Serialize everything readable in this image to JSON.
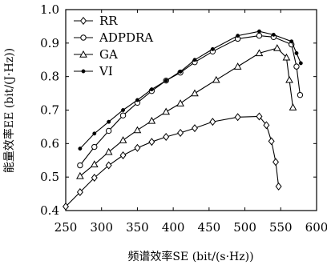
{
  "chart_data": {
    "type": "line",
    "xlabel": "频谱效率SE (bit/(s·Hz))",
    "ylabel": "能量效率EE (bit/(J·Hz))",
    "xlim": [
      250,
      600
    ],
    "ylim": [
      0.4,
      1.0
    ],
    "x_ticks": [
      "250",
      "300",
      "350",
      "400",
      "450",
      "500",
      "550",
      "600"
    ],
    "y_ticks": [
      "0.4",
      "0.5",
      "0.6",
      "0.7",
      "0.8",
      "0.9",
      "1.0"
    ],
    "legend_position": "top-left",
    "series": [
      {
        "name": "RR",
        "marker": "diamond",
        "points": [
          [
            250,
            0.412
          ],
          [
            270,
            0.455
          ],
          [
            290,
            0.498
          ],
          [
            310,
            0.535
          ],
          [
            330,
            0.565
          ],
          [
            350,
            0.587
          ],
          [
            370,
            0.605
          ],
          [
            390,
            0.62
          ],
          [
            410,
            0.632
          ],
          [
            430,
            0.646
          ],
          [
            455,
            0.665
          ],
          [
            490,
            0.679
          ],
          [
            520,
            0.681
          ],
          [
            530,
            0.655
          ],
          [
            537,
            0.607
          ],
          [
            543,
            0.545
          ],
          [
            547,
            0.472
          ]
        ]
      },
      {
        "name": "ADPDRA",
        "marker": "circle-open",
        "points": [
          [
            270,
            0.535
          ],
          [
            290,
            0.59
          ],
          [
            310,
            0.638
          ],
          [
            330,
            0.684
          ],
          [
            350,
            0.722
          ],
          [
            370,
            0.757
          ],
          [
            390,
            0.788
          ],
          [
            410,
            0.812
          ],
          [
            430,
            0.843
          ],
          [
            455,
            0.875
          ],
          [
            490,
            0.913
          ],
          [
            520,
            0.922
          ],
          [
            540,
            0.918
          ],
          [
            565,
            0.896
          ],
          [
            572,
            0.83
          ],
          [
            577,
            0.745
          ]
        ]
      },
      {
        "name": "GA",
        "marker": "triangle-open",
        "points": [
          [
            270,
            0.503
          ],
          [
            290,
            0.538
          ],
          [
            310,
            0.575
          ],
          [
            330,
            0.61
          ],
          [
            350,
            0.64
          ],
          [
            370,
            0.668
          ],
          [
            390,
            0.695
          ],
          [
            410,
            0.72
          ],
          [
            430,
            0.75
          ],
          [
            460,
            0.79
          ],
          [
            490,
            0.83
          ],
          [
            520,
            0.87
          ],
          [
            545,
            0.885
          ],
          [
            558,
            0.857
          ],
          [
            562,
            0.79
          ],
          [
            567,
            0.708
          ]
        ]
      },
      {
        "name": "VI",
        "marker": "dot",
        "points": [
          [
            270,
            0.585
          ],
          [
            290,
            0.63
          ],
          [
            310,
            0.665
          ],
          [
            330,
            0.7
          ],
          [
            350,
            0.73
          ],
          [
            370,
            0.762
          ],
          [
            390,
            0.788
          ],
          [
            410,
            0.815
          ],
          [
            430,
            0.85
          ],
          [
            455,
            0.882
          ],
          [
            490,
            0.922
          ],
          [
            520,
            0.935
          ],
          [
            540,
            0.925
          ],
          [
            565,
            0.905
          ],
          [
            572,
            0.87
          ],
          [
            578,
            0.84
          ]
        ]
      }
    ]
  }
}
